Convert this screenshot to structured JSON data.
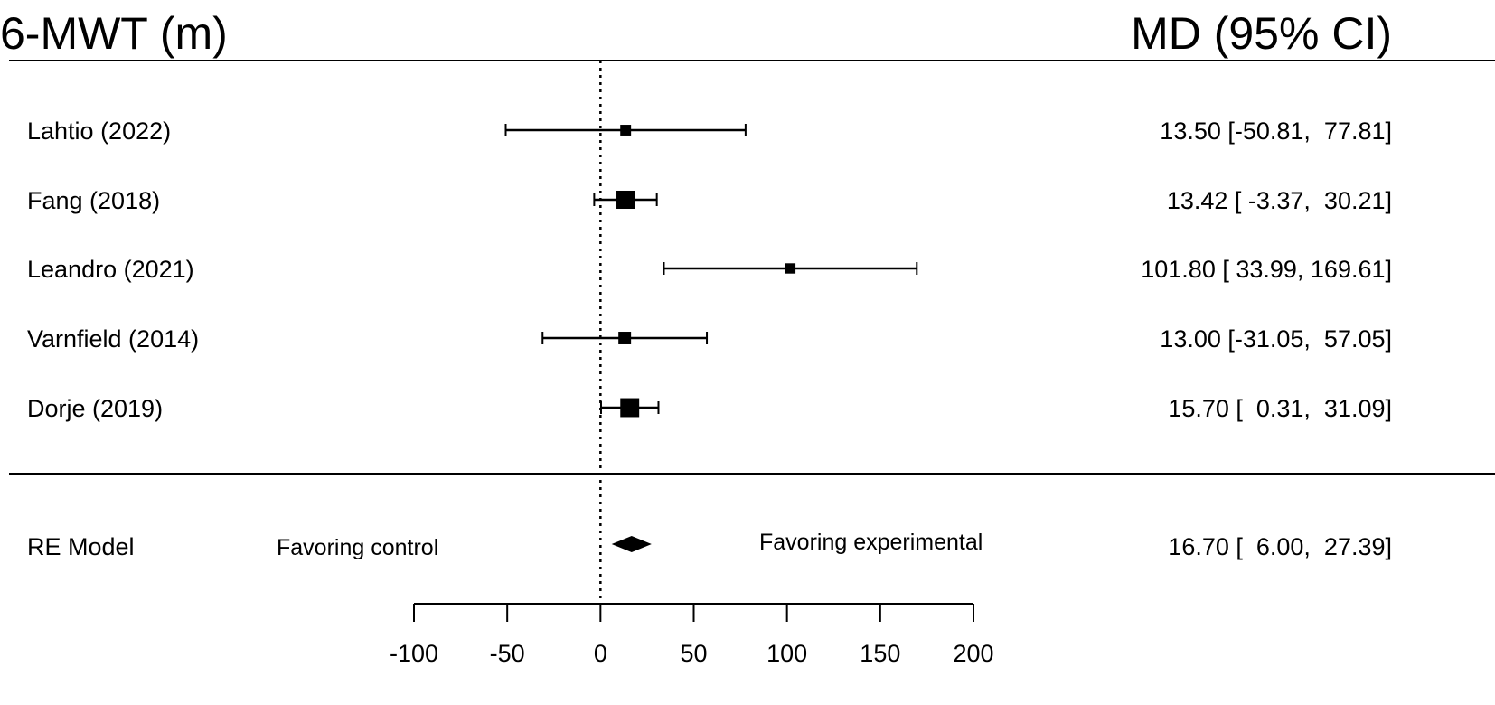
{
  "chart_data": {
    "type": "forest",
    "title_left": "6-MWT (m)",
    "title_right": "MD (95% CI)",
    "xlim": [
      -100,
      200
    ],
    "xticks": [
      -100,
      -50,
      0,
      50,
      100,
      150,
      200
    ],
    "xtick_labels": [
      "-100",
      "-50",
      "0",
      "50",
      "100",
      "150",
      "200"
    ],
    "reference_line": 0,
    "studies": [
      {
        "label": "Lahtio (2022)",
        "md": 13.5,
        "lower": -50.81,
        "upper": 77.81,
        "text": "13.50 [-50.81,  77.81]",
        "weight": 0.05
      },
      {
        "label": "Fang (2018)",
        "md": 13.42,
        "lower": -3.37,
        "upper": 30.21,
        "text": "13.42 [ -3.37,  30.21]",
        "weight": 0.35
      },
      {
        "label": "Leandro (2021)",
        "md": 101.8,
        "lower": 33.99,
        "upper": 169.61,
        "text": "101.80 [ 33.99, 169.61]",
        "weight": 0.04
      },
      {
        "label": "Varnfield (2014)",
        "md": 13.0,
        "lower": -31.05,
        "upper": 57.05,
        "text": "13.00 [-31.05,  57.05]",
        "weight": 0.1
      },
      {
        "label": "Dorje (2019)",
        "md": 15.7,
        "lower": 0.31,
        "upper": 31.09,
        "text": "15.70 [  0.31,  31.09]",
        "weight": 0.4
      }
    ],
    "summary": {
      "label": "RE Model",
      "md": 16.7,
      "lower": 6.0,
      "upper": 27.39,
      "text": "16.70 [  6.00,  27.39]"
    },
    "favoring_left": "Favoring control",
    "favoring_right": "Favoring experimental"
  }
}
